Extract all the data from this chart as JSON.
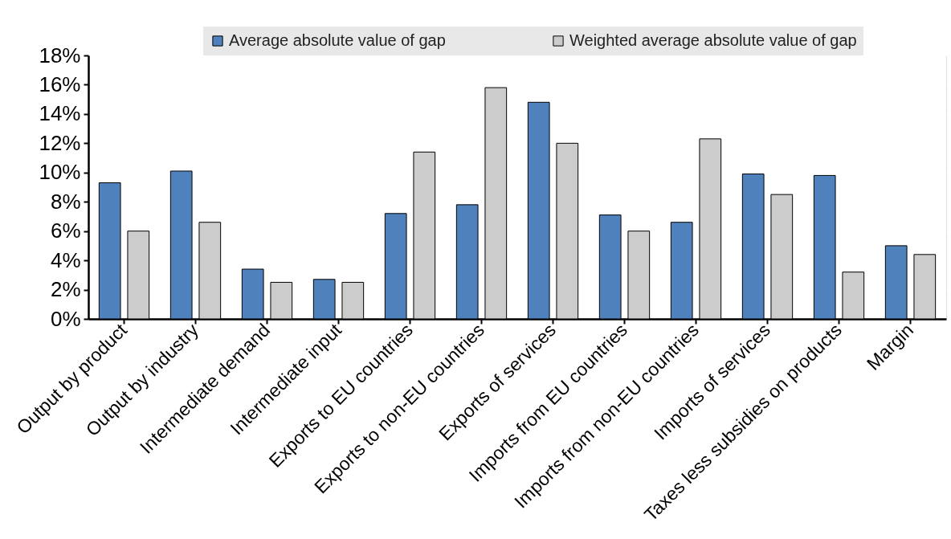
{
  "chart_data": {
    "type": "bar",
    "categories": [
      "Output by product",
      "Output by industry",
      "Intermediate demand",
      "Intermediate input",
      "Exports to EU countries",
      "Exports to non-EU countries",
      "Exports of services",
      "Imports from EU countries",
      "Imports from non-EU countries",
      "Imports of services",
      "Taxes less subsidies on products",
      "Margin"
    ],
    "series": [
      {
        "name": "Average absolute value of gap",
        "color": "#4f81bd",
        "values": [
          9.3,
          10.1,
          3.4,
          2.7,
          7.2,
          7.8,
          14.8,
          7.1,
          6.6,
          9.9,
          9.8,
          5.0
        ]
      },
      {
        "name": "Weighted average absolute value of gap",
        "color": "#cccccc",
        "values": [
          6.0,
          6.6,
          2.5,
          2.5,
          11.4,
          15.8,
          12.0,
          6.0,
          12.3,
          8.5,
          3.2,
          4.4
        ]
      }
    ],
    "ylim": [
      0,
      18
    ],
    "yticks": [
      {
        "value": 0,
        "label": "0%"
      },
      {
        "value": 2,
        "label": "2%"
      },
      {
        "value": 4,
        "label": "4%"
      },
      {
        "value": 6,
        "label": "6%"
      },
      {
        "value": 8,
        "label": "8%"
      },
      {
        "value": 10,
        "label": "10%"
      },
      {
        "value": 12,
        "label": "12%"
      },
      {
        "value": 14,
        "label": "14%"
      },
      {
        "value": 16,
        "label": "16%"
      },
      {
        "value": 18,
        "label": "18%"
      }
    ],
    "grid": true,
    "legend": "top"
  }
}
